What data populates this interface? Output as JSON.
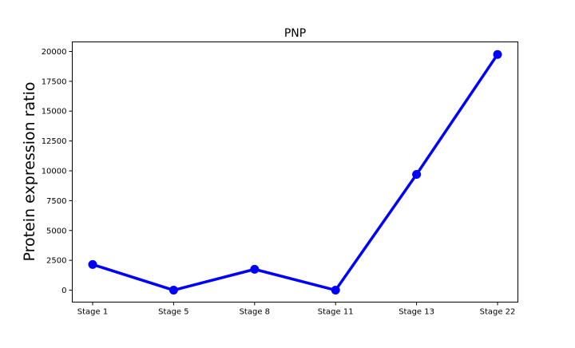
{
  "chart_data": {
    "type": "line",
    "title": "PNP",
    "xlabel": "",
    "ylabel": "Protein expression ratio",
    "categories": [
      "Stage 1",
      "Stage 5",
      "Stage 8",
      "Stage 11",
      "Stage 13",
      "Stage 22"
    ],
    "series": [
      {
        "values": [
          2150,
          0,
          1750,
          0,
          9700,
          19750
        ],
        "color": "#0000ff",
        "marker": "circle"
      }
    ],
    "ylim": [
      -1000,
      20800
    ],
    "yticks": [
      0,
      2500,
      5000,
      7500,
      10000,
      12500,
      15000,
      17500,
      20000
    ],
    "ytick_labels": [
      "0",
      "2500",
      "5000",
      "7500",
      "10000",
      "12500",
      "15000",
      "17500",
      "20000"
    ],
    "grid": false,
    "legend": "none"
  }
}
